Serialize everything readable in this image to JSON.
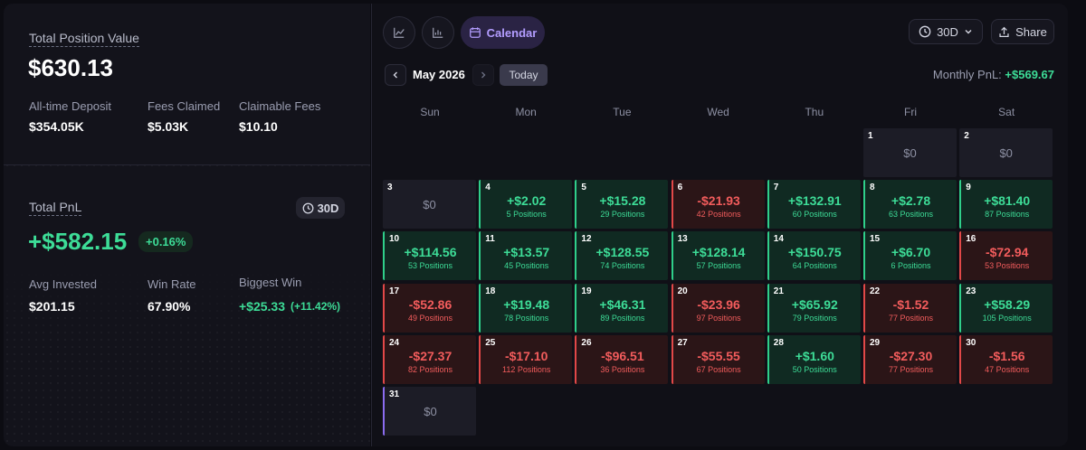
{
  "summary": {
    "title": "Total Position Value",
    "value": "$630.13",
    "stats": [
      {
        "label": "All-time Deposit",
        "value": "$354.05K"
      },
      {
        "label": "Fees Claimed",
        "value": "$5.03K"
      },
      {
        "label": "Claimable Fees",
        "value": "$10.10"
      }
    ]
  },
  "pnl": {
    "title": "Total PnL",
    "period": "30D",
    "value": "+$582.15",
    "change": "+0.16%",
    "stats": [
      {
        "label": "Avg Invested",
        "value": "$201.15"
      },
      {
        "label": "Win Rate",
        "value": "67.90%"
      },
      {
        "label": "Biggest Win",
        "value": "+$25.33",
        "detail": "(+11.42%)"
      }
    ]
  },
  "toolbar": {
    "active_tab": "Calendar",
    "period": "30D",
    "share": "Share"
  },
  "nav": {
    "month": "May 2026",
    "today": "Today",
    "monthly_pnl_label": "Monthly PnL:",
    "monthly_pnl": "+$569.67"
  },
  "weekdays": [
    "Sun",
    "Mon",
    "Tue",
    "Wed",
    "Thu",
    "Fri",
    "Sat"
  ],
  "selected_day": 31,
  "days": [
    {
      "day": 1,
      "pnl": "$0"
    },
    {
      "day": 2,
      "pnl": "$0"
    },
    {
      "day": 3,
      "pnl": "$0"
    },
    {
      "day": 4,
      "pnl": "+$2.02",
      "positions": "5 Positions"
    },
    {
      "day": 5,
      "pnl": "+$15.28",
      "positions": "29 Positions"
    },
    {
      "day": 6,
      "pnl": "-$21.93",
      "positions": "42 Positions"
    },
    {
      "day": 7,
      "pnl": "+$132.91",
      "positions": "60 Positions"
    },
    {
      "day": 8,
      "pnl": "+$2.78",
      "positions": "63 Positions"
    },
    {
      "day": 9,
      "pnl": "+$81.40",
      "positions": "87 Positions"
    },
    {
      "day": 10,
      "pnl": "+$114.56",
      "positions": "53 Positions"
    },
    {
      "day": 11,
      "pnl": "+$13.57",
      "positions": "45 Positions"
    },
    {
      "day": 12,
      "pnl": "+$128.55",
      "positions": "74 Positions"
    },
    {
      "day": 13,
      "pnl": "+$128.14",
      "positions": "57 Positions"
    },
    {
      "day": 14,
      "pnl": "+$150.75",
      "positions": "64 Positions"
    },
    {
      "day": 15,
      "pnl": "+$6.70",
      "positions": "6 Positions"
    },
    {
      "day": 16,
      "pnl": "-$72.94",
      "positions": "53 Positions"
    },
    {
      "day": 17,
      "pnl": "-$52.86",
      "positions": "49 Positions"
    },
    {
      "day": 18,
      "pnl": "+$19.48",
      "positions": "78 Positions"
    },
    {
      "day": 19,
      "pnl": "+$46.31",
      "positions": "89 Positions"
    },
    {
      "day": 20,
      "pnl": "-$23.96",
      "positions": "97 Positions"
    },
    {
      "day": 21,
      "pnl": "+$65.92",
      "positions": "79 Positions"
    },
    {
      "day": 22,
      "pnl": "-$1.52",
      "positions": "77 Positions"
    },
    {
      "day": 23,
      "pnl": "+$58.29",
      "positions": "105 Positions"
    },
    {
      "day": 24,
      "pnl": "-$27.37",
      "positions": "82 Positions"
    },
    {
      "day": 25,
      "pnl": "-$17.10",
      "positions": "112 Positions"
    },
    {
      "day": 26,
      "pnl": "-$96.51",
      "positions": "36 Positions"
    },
    {
      "day": 27,
      "pnl": "-$55.55",
      "positions": "67 Positions"
    },
    {
      "day": 28,
      "pnl": "+$1.60",
      "positions": "50 Positions"
    },
    {
      "day": 29,
      "pnl": "-$27.30",
      "positions": "77 Positions"
    },
    {
      "day": 30,
      "pnl": "-$1.56",
      "positions": "47 Positions"
    },
    {
      "day": 31,
      "pnl": "$0"
    }
  ]
}
